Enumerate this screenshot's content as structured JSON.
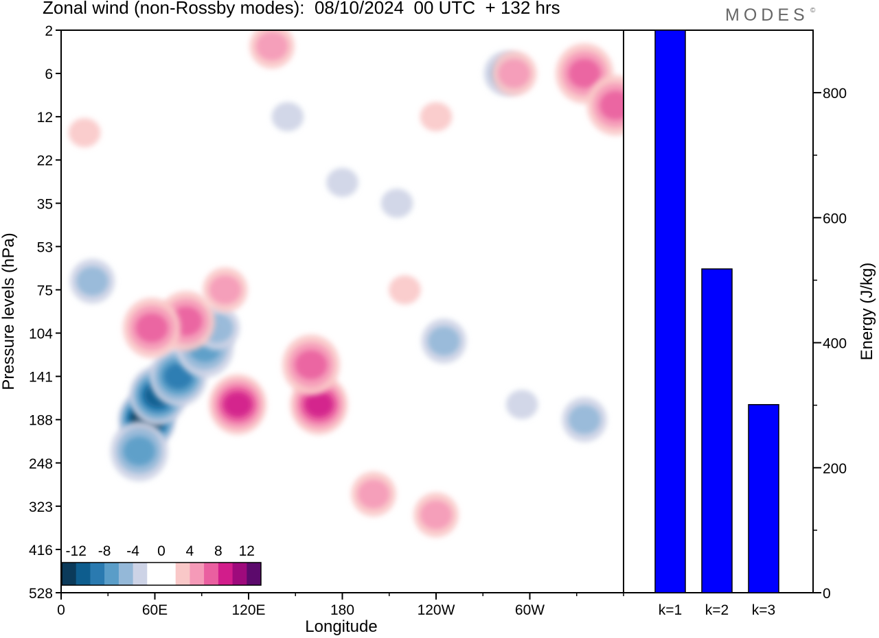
{
  "header": {
    "title": "Zonal wind (non-Rossby modes):  08/10/2024  00 UTC  + 132 hrs",
    "brand": "MODES",
    "brand_mark": "©"
  },
  "chart_data": [
    {
      "type": "heatmap",
      "title": "Zonal wind (non-Rossby modes):  08/10/2024  00 UTC  + 132 hrs",
      "xlabel": "Longitude",
      "ylabel": "Pressure levels (hPa)",
      "x_ticks": [
        "0",
        "60E",
        "120E",
        "180",
        "120W",
        "60W"
      ],
      "y_ticks": [
        "2",
        "6",
        "12",
        "22",
        "35",
        "53",
        "75",
        "104",
        "141",
        "188",
        "248",
        "323",
        "416",
        "528"
      ],
      "colorbar": {
        "labels": [
          "-12",
          "-8",
          "-4",
          "0",
          "4",
          "8",
          "12"
        ],
        "colors": [
          "#0b3a5a",
          "#0e5d8e",
          "#2a7ab0",
          "#5a9dc8",
          "#94b8d8",
          "#cdd3e6",
          "#ffffff",
          "#ffffff",
          "#f9c8c8",
          "#f59ab8",
          "#ea5fa0",
          "#d21d8b",
          "#9e0a7c",
          "#5c0a6c"
        ]
      },
      "blobs": [
        {
          "lon": 55,
          "lev": 188,
          "value": -13
        },
        {
          "lon": 62,
          "lev": 160,
          "value": -10
        },
        {
          "lon": 75,
          "lev": 141,
          "value": -8
        },
        {
          "lon": 92,
          "lev": 115,
          "value": -6
        },
        {
          "lon": 50,
          "lev": 230,
          "value": -5
        },
        {
          "lon": 100,
          "lev": 100,
          "value": -3
        },
        {
          "lon": 20,
          "lev": 70,
          "value": -3
        },
        {
          "lon": 285,
          "lev": 6,
          "value": -4
        },
        {
          "lon": 335,
          "lev": 188,
          "value": -3
        },
        {
          "lon": 245,
          "lev": 110,
          "value": -3
        },
        {
          "lon": 145,
          "lev": 12,
          "value": -2
        },
        {
          "lon": 215,
          "lev": 35,
          "value": -2
        },
        {
          "lon": 295,
          "lev": 170,
          "value": -2
        },
        {
          "lon": 180,
          "lev": 28,
          "value": -2
        },
        {
          "lon": 80,
          "lev": 95,
          "value": 6
        },
        {
          "lon": 58,
          "lev": 100,
          "value": 5
        },
        {
          "lon": 105,
          "lev": 75,
          "value": 4
        },
        {
          "lon": 113,
          "lev": 170,
          "value": 7
        },
        {
          "lon": 165,
          "lev": 170,
          "value": 7
        },
        {
          "lon": 160,
          "lev": 130,
          "value": 5
        },
        {
          "lon": 200,
          "lev": 300,
          "value": 3
        },
        {
          "lon": 240,
          "lev": 340,
          "value": 4
        },
        {
          "lon": 335,
          "lev": 6,
          "value": 6
        },
        {
          "lon": 355,
          "lev": 10,
          "value": 5
        },
        {
          "lon": 290,
          "lev": 6,
          "value": 3
        },
        {
          "lon": 15,
          "lev": 15,
          "value": 2
        },
        {
          "lon": 135,
          "lev": 3,
          "value": 3
        },
        {
          "lon": 220,
          "lev": 75,
          "value": 2
        },
        {
          "lon": 240,
          "lev": 12,
          "value": 2
        }
      ]
    },
    {
      "type": "bar",
      "categories": [
        "k=1",
        "k=2",
        "k=3"
      ],
      "values": [
        900,
        518,
        301
      ],
      "ylabel": "Energy (J/kg)",
      "ylim": [
        0,
        900
      ],
      "y_ticks": [
        "0",
        "200",
        "400",
        "600",
        "800"
      ],
      "bar_color": "#0000ff"
    }
  ]
}
